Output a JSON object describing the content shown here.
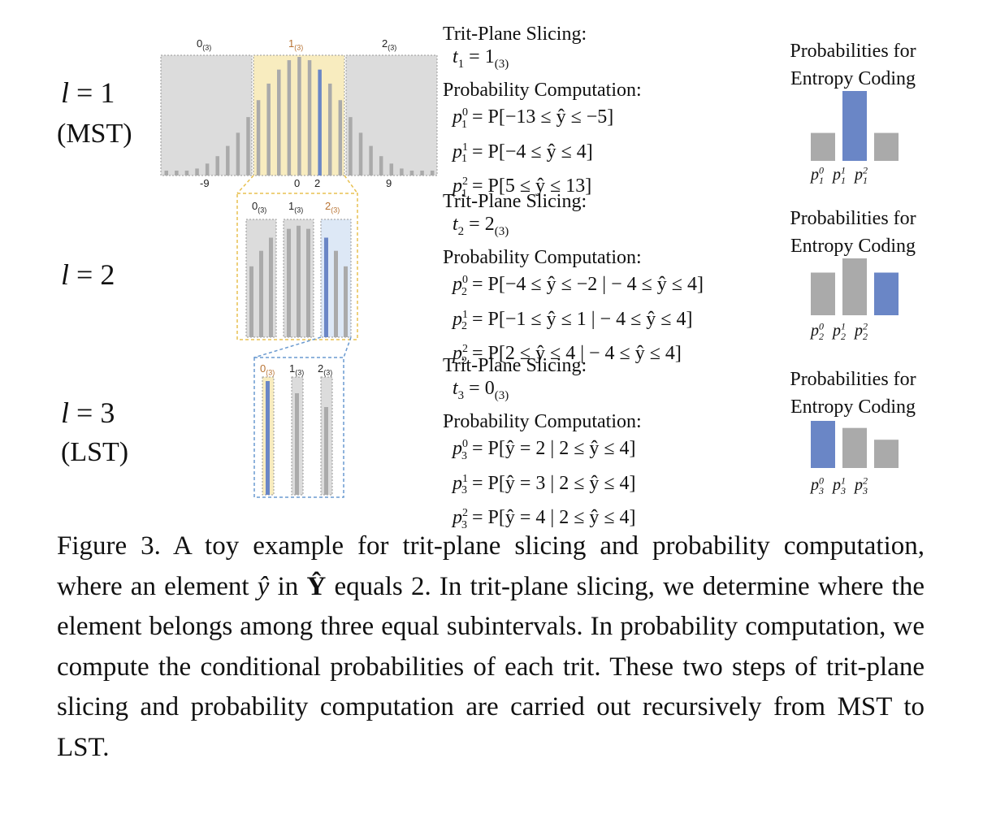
{
  "levels": [
    {
      "var": "l",
      "eq": "= 1",
      "sub": "(MST)"
    },
    {
      "var": "l",
      "eq": "= 2",
      "sub": ""
    },
    {
      "var": "l",
      "eq": "= 3",
      "sub": "(LST)"
    }
  ],
  "hist_labels": {
    "l1_tops": [
      "0",
      "1",
      "2"
    ],
    "base3": "(3)",
    "l1_axis": [
      "-9",
      "0",
      "2",
      "9"
    ]
  },
  "blocks": [
    {
      "slice_title": "Trit-Plane Slicing:",
      "t_var": "t",
      "t_sub": "1",
      "t_val": "= 1",
      "t_base": "(3)",
      "prob_title": "Probability Computation:",
      "rows": [
        {
          "p": "p",
          "sup": "0",
          "sub": "1",
          "expr": "= P[−13 ≤ ŷ ≤ −5]"
        },
        {
          "p": "p",
          "sup": "1",
          "sub": "1",
          "expr": "= P[−4 ≤ ŷ ≤ 4]"
        },
        {
          "p": "p",
          "sup": "2",
          "sub": "1",
          "expr": "= P[5 ≤ ŷ ≤ 13]"
        }
      ]
    },
    {
      "slice_title": "Trit-Plane Slicing:",
      "t_var": "t",
      "t_sub": "2",
      "t_val": "= 2",
      "t_base": "(3)",
      "prob_title": "Probability Computation:",
      "rows": [
        {
          "p": "p",
          "sup": "0",
          "sub": "2",
          "expr": "= P[−4 ≤ ŷ ≤ −2 | − 4 ≤ ŷ ≤ 4]"
        },
        {
          "p": "p",
          "sup": "1",
          "sub": "2",
          "expr": "= P[−1 ≤ ŷ ≤ 1 | − 4 ≤ ŷ ≤ 4]"
        },
        {
          "p": "p",
          "sup": "2",
          "sub": "2",
          "expr": "= P[2 ≤ ŷ ≤ 4 | − 4 ≤ ŷ ≤ 4]"
        }
      ]
    },
    {
      "slice_title": "Trit-Plane Slicing:",
      "t_var": "t",
      "t_sub": "3",
      "t_val": "= 0",
      "t_base": "(3)",
      "prob_title": "Probability Computation:",
      "rows": [
        {
          "p": "p",
          "sup": "0",
          "sub": "3",
          "expr": "= P[ŷ = 2 | 2 ≤ ŷ ≤ 4]"
        },
        {
          "p": "p",
          "sup": "1",
          "sub": "3",
          "expr": "= P[ŷ = 3 | 2 ≤ ŷ ≤ 4]"
        },
        {
          "p": "p",
          "sup": "2",
          "sub": "3",
          "expr": "= P[ŷ = 4 | 2 ≤ ŷ ≤ 4]"
        }
      ]
    }
  ],
  "prob_panels": [
    {
      "title1": "Probabilities for",
      "title2": "Entropy Coding",
      "bars": [
        {
          "value": 0.4,
          "highlight": false
        },
        {
          "value": 1.0,
          "highlight": true
        },
        {
          "value": 0.4,
          "highlight": false
        }
      ],
      "labels": [
        {
          "p": "p",
          "sup": "0",
          "sub": "1"
        },
        {
          "p": "p",
          "sup": "1",
          "sub": "1"
        },
        {
          "p": "p",
          "sup": "2",
          "sub": "1"
        }
      ]
    },
    {
      "title1": "Probabilities for",
      "title2": "Entropy Coding",
      "bars": [
        {
          "value": 0.75,
          "highlight": false
        },
        {
          "value": 1.0,
          "highlight": false
        },
        {
          "value": 0.75,
          "highlight": true
        }
      ],
      "labels": [
        {
          "p": "p",
          "sup": "0",
          "sub": "2"
        },
        {
          "p": "p",
          "sup": "1",
          "sub": "2"
        },
        {
          "p": "p",
          "sup": "2",
          "sub": "2"
        }
      ]
    },
    {
      "title1": "Probabilities for",
      "title2": "Entropy Coding",
      "bars": [
        {
          "value": 1.0,
          "highlight": true
        },
        {
          "value": 0.85,
          "highlight": false
        },
        {
          "value": 0.6,
          "highlight": false
        }
      ],
      "labels": [
        {
          "p": "p",
          "sup": "0",
          "sub": "3"
        },
        {
          "p": "p",
          "sup": "1",
          "sub": "3"
        },
        {
          "p": "p",
          "sup": "2",
          "sub": "3"
        }
      ]
    }
  ],
  "colors": {
    "gray_bar": "#aaaaaa",
    "blue_bar": "#6a86c6",
    "yellow_bg": "#f8ecbf",
    "gray_bg": "#dcdcdc",
    "light_blue_bg": "#dde8f6",
    "orange_text": "#b87333",
    "yellow_border": "#e8c050",
    "blue_border": "#6a9ad0"
  },
  "caption": {
    "p1": "Figure 3. A toy example for trit-plane slicing and probability computation, where an element ",
    "yhat": "ŷ",
    "p2": " in ",
    "Y": "Ŷ",
    "p3": " equals 2. In trit-plane slicing, we determine where the element belongs among three equal subintervals. In probability computation, we compute the conditional probabilities of each trit. These two steps of trit-plane slicing and probability computation are carried out recursively from MST to LST."
  }
}
